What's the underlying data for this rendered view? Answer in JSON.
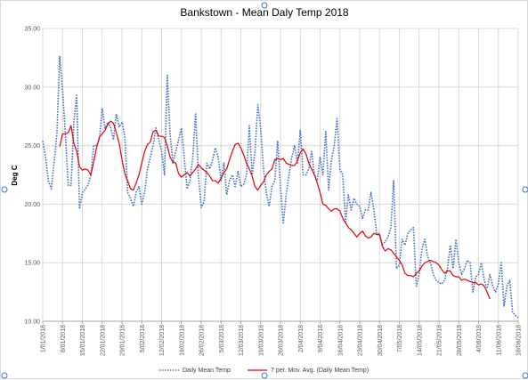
{
  "chart_data": {
    "type": "line",
    "title": "Bankstown - Mean Daly Temp 2018",
    "ylabel": "Deg C",
    "xlabel": "",
    "ylim": [
      10,
      35
    ],
    "yticks": [
      "10.00",
      "15.00",
      "20.00",
      "25.00",
      "30.00",
      "35.00"
    ],
    "xticks": [
      "1/01/2018",
      "8/01/2018",
      "15/01/2018",
      "22/01/2018",
      "29/01/2018",
      "5/02/2018",
      "12/02/2018",
      "19/02/2018",
      "26/02/2018",
      "5/03/2018",
      "12/03/2018",
      "19/03/2018",
      "26/03/2018",
      "2/04/2018",
      "9/04/2018",
      "16/04/2018",
      "23/04/2018",
      "30/04/2018",
      "7/05/2018",
      "14/05/2018",
      "21/05/2018",
      "28/05/2018",
      "4/06/2018",
      "11/06/2018",
      "18/06/2018"
    ],
    "grid": true,
    "legend_position": "bottom",
    "series": [
      {
        "name": "Daily Mean Temp",
        "style": "dotted",
        "color": "#4472c4",
        "values": [
          25.4,
          24.0,
          22.0,
          21.3,
          23.5,
          26.0,
          32.6,
          29.8,
          26.0,
          21.6,
          21.6,
          27.0,
          29.3,
          19.6,
          21.0,
          21.3,
          21.6,
          22.5,
          25.0,
          25.0,
          25.5,
          28.2,
          26.5,
          27.0,
          26.5,
          25.5,
          27.7,
          26.6,
          27.0,
          25.8,
          21.0,
          20.5,
          19.8,
          21.0,
          21.5,
          20.0,
          21.0,
          23.0,
          24.0,
          25.0,
          26.5,
          25.5,
          24.5,
          22.5,
          31.0,
          26.0,
          23.5,
          24.5,
          25.5,
          26.5,
          24.0,
          21.3,
          22.0,
          24.0,
          27.7,
          22.5,
          19.7,
          20.2,
          23.5,
          23.0,
          23.8,
          24.8,
          24.0,
          22.0,
          23.5,
          20.8,
          22.0,
          22.5,
          21.5,
          22.8,
          21.5,
          21.7,
          22.5,
          26.7,
          22.5,
          24.5,
          28.5,
          26.5,
          23.0,
          21.0,
          19.8,
          21.5,
          22.0,
          25.4,
          21.5,
          18.3,
          20.8,
          22.5,
          24.0,
          25.0,
          23.5,
          26.3,
          22.5,
          22.5,
          23.0,
          24.5,
          22.5,
          22.0,
          24.0,
          22.5,
          26.2,
          21.2,
          23.7,
          25.0,
          27.3,
          23.0,
          22.5,
          18.5,
          20.8,
          19.5,
          20.5,
          20.0,
          19.8,
          18.8,
          19.5,
          19.5,
          21.0,
          19.5,
          17.5,
          17.5,
          16.5,
          16.8,
          17.2,
          18.0,
          22.0,
          14.5,
          14.8,
          17.0,
          16.5,
          17.5,
          17.8,
          18.0,
          13.0,
          14.0,
          16.2,
          17.0,
          15.5,
          15.0,
          14.0,
          13.5,
          13.3,
          13.2,
          13.5,
          14.5,
          16.5,
          14.5,
          17.0,
          15.0,
          14.0,
          14.5,
          15.2,
          15.0,
          12.5,
          13.8,
          14.0,
          15.0,
          13.5,
          12.8,
          14.0,
          13.0,
          12.5,
          13.2,
          15.0,
          11.3,
          13.0,
          13.5,
          10.8,
          10.5,
          10.3
        ]
      },
      {
        "name": "7 per. Mov. Avg. (Daily Mean Temp)",
        "style": "solid",
        "color": "#e00000",
        "start_index": 6,
        "values": [
          24.9,
          26.0,
          26.0,
          26.1,
          26.7,
          25.2,
          24.5,
          23.2,
          22.9,
          23.0,
          22.9,
          22.5,
          23.6,
          24.8,
          25.7,
          26.0,
          26.3,
          26.8,
          27.1,
          26.9,
          26.1,
          25.2,
          23.8,
          22.6,
          22.0,
          21.3,
          21.2,
          21.8,
          22.5,
          23.5,
          24.5,
          25.1,
          25.3,
          26.2,
          26.3,
          25.8,
          25.8,
          25.7,
          25.0,
          24.0,
          23.6,
          23.5,
          22.6,
          22.3,
          22.5,
          22.7,
          22.4,
          22.7,
          23.0,
          23.4,
          23.1,
          22.9,
          22.7,
          22.4,
          22.0,
          22.0,
          21.8,
          22.2,
          22.7,
          23.0,
          23.8,
          24.5,
          25.1,
          25.2,
          24.8,
          24.2,
          23.5,
          23.0,
          22.4,
          21.5,
          21.2,
          21.6,
          21.9,
          22.5,
          22.8,
          23.0,
          23.8,
          23.9,
          23.8,
          23.9,
          23.5,
          23.4,
          23.3,
          23.3,
          23.7,
          24.4,
          24.7,
          24.3,
          23.5,
          23.0,
          22.5,
          21.8,
          21.0,
          20.0,
          19.9,
          19.6,
          19.4,
          19.6,
          19.6,
          19.4,
          18.8,
          18.4,
          18.0,
          17.8,
          17.5,
          17.2,
          17.5,
          17.7,
          17.3,
          17.1,
          17.2,
          17.5,
          17.4,
          17.4,
          16.4,
          16.0,
          16.2,
          16.1,
          15.8,
          15.5,
          15.2,
          14.8,
          14.1,
          13.9,
          13.9,
          13.8,
          14.1,
          14.3,
          14.7,
          15.0,
          15.1,
          15.2,
          15.1,
          15.0,
          14.8,
          14.4,
          14.1,
          14.3,
          14.3,
          13.9,
          13.8,
          13.8,
          13.5,
          13.6,
          13.5,
          13.4,
          13.3,
          13.3,
          13.1,
          13.2,
          13.0,
          12.5,
          11.9
        ]
      }
    ]
  }
}
